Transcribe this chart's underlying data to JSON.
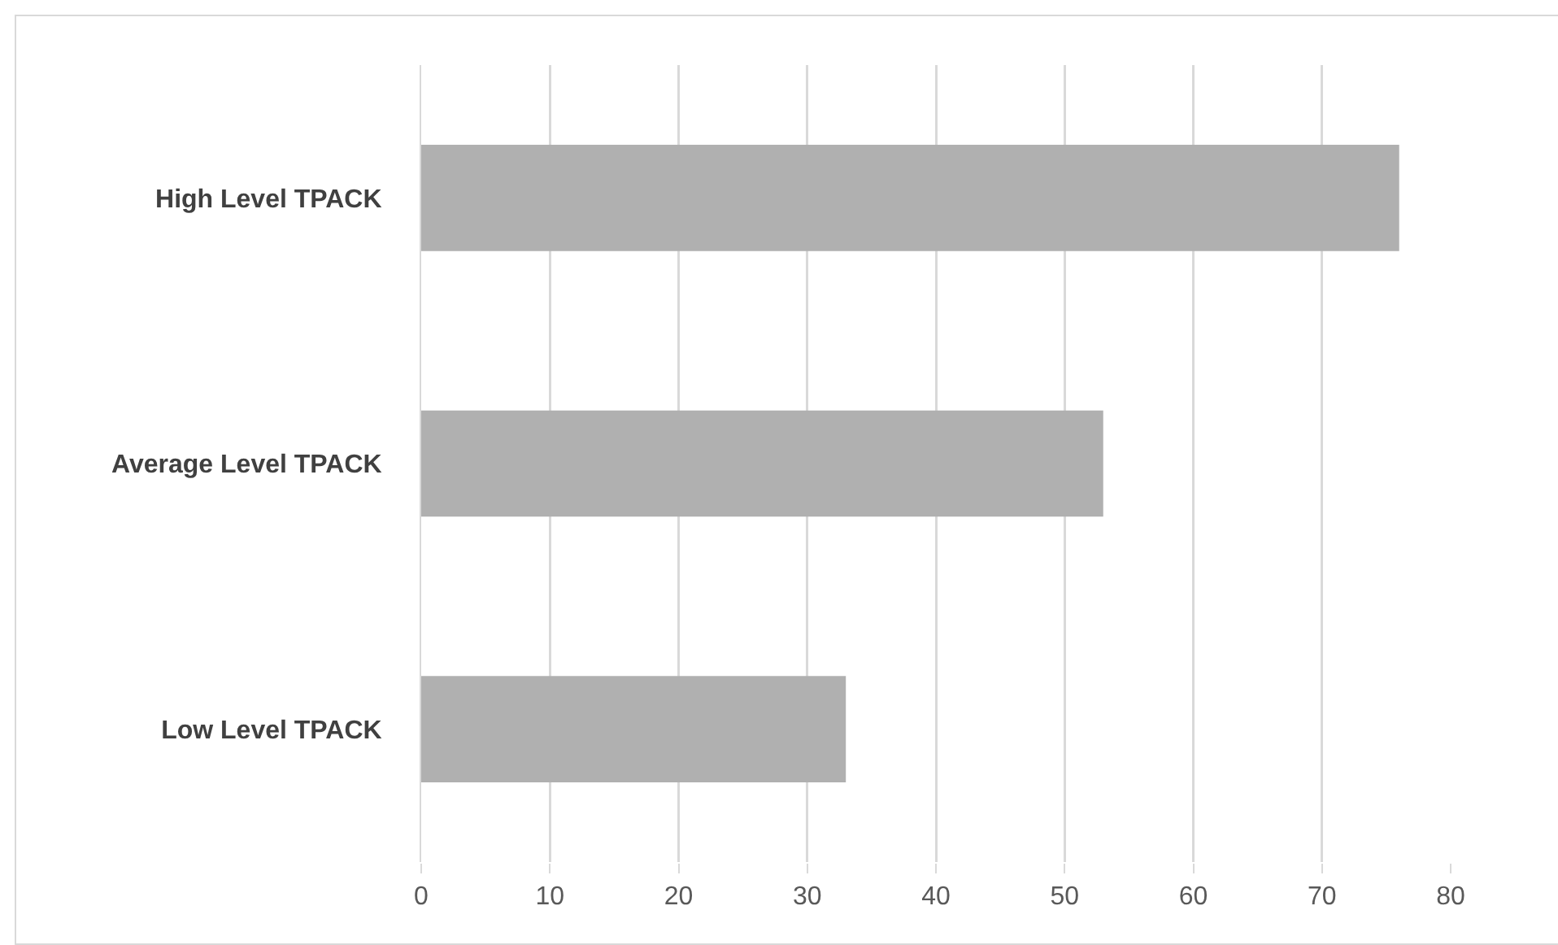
{
  "chart_data": {
    "type": "bar",
    "orientation": "horizontal",
    "categories": [
      "High Level TPACK",
      "Average Level TPACK",
      "Low Level TPACK"
    ],
    "values": [
      76,
      53,
      33
    ],
    "color": "#b0b0b0",
    "xlim": [
      0,
      80
    ],
    "xticks": [
      0,
      10,
      20,
      30,
      40,
      50,
      60,
      70,
      80
    ],
    "grid": "x",
    "legend": false
  }
}
